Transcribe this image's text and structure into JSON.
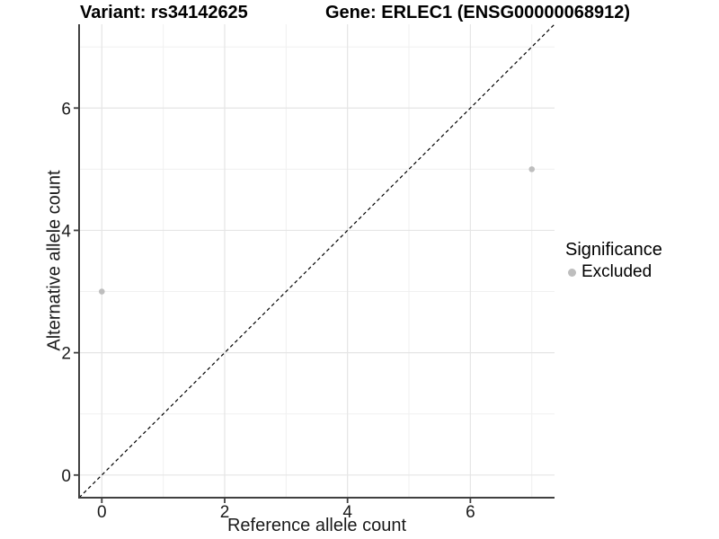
{
  "titles": {
    "left": "Variant: rs34142625",
    "right": "Gene: ERLEC1 (ENSG00000068912)"
  },
  "axes": {
    "x_label": "Reference allele count",
    "y_label": "Alternative allele count"
  },
  "legend": {
    "title": "Significance",
    "items": [
      {
        "label": "Excluded",
        "color": "#bebebe"
      }
    ]
  },
  "chart_data": {
    "type": "scatter",
    "title": "Variant: rs34142625    Gene: ERLEC1 (ENSG00000068912)",
    "xlabel": "Reference allele count",
    "ylabel": "Alternative allele count",
    "xlim": [
      -0.37,
      7.37
    ],
    "ylim": [
      -0.37,
      7.37
    ],
    "x_breaks": [
      0,
      2,
      4,
      6
    ],
    "x_minor_breaks": [
      1,
      3,
      5,
      7
    ],
    "y_breaks": [
      0,
      2,
      4,
      6
    ],
    "y_minor_breaks": [
      1,
      3,
      5,
      7
    ],
    "grid": true,
    "identity_line": {
      "show": true,
      "style": "dashed",
      "slope": 1,
      "intercept": 0
    },
    "series": [
      {
        "name": "Excluded",
        "points": [
          {
            "x": 0,
            "y": 3
          },
          {
            "x": 7,
            "y": 5
          }
        ]
      }
    ],
    "legend_position": "right",
    "colors": {
      "point": "#bebebe",
      "axis_line": "#404040",
      "tick_text": "#1a1a1a",
      "grid_major": "#e5e5e5",
      "grid_minor": "#f0f0f0",
      "identity_line": "#000000",
      "background": "#ffffff"
    }
  }
}
